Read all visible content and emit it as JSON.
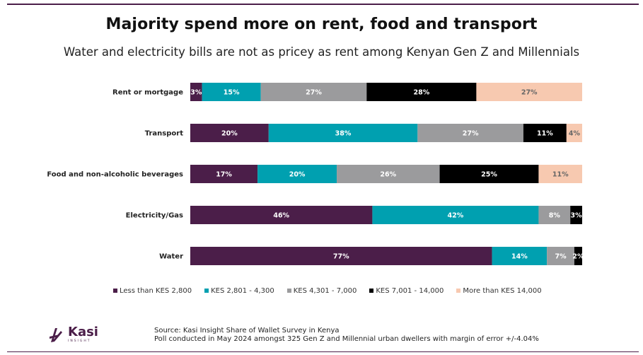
{
  "header": {
    "title": "Majority spend more on rent, food and transport",
    "subtitle": "Water and electricity bills are not as pricey as rent among Kenyan Gen Z and Millennials"
  },
  "colors": [
    "#4b1e49",
    "#00a0b0",
    "#9b9b9d",
    "#000000",
    "#f7c9b0"
  ],
  "label_colors": [
    "#ffffff",
    "#ffffff",
    "#ffffff",
    "#ffffff",
    "#666666"
  ],
  "chart_data": {
    "type": "bar",
    "orientation": "horizontal",
    "stacked": true,
    "categories": [
      "Rent or mortgage",
      "Transport",
      "Food and non-alcoholic beverages",
      "Electricity/Gas",
      "Water"
    ],
    "series": [
      {
        "name": "Less than KES 2,800",
        "values": [
          3,
          20,
          17,
          46,
          77
        ],
        "labels": [
          "3%",
          "20%",
          "17%",
          "46%",
          "77%"
        ]
      },
      {
        "name": "KES 2,801 - 4,300",
        "values": [
          15,
          38,
          20,
          42,
          14
        ],
        "labels": [
          "15%",
          "38%",
          "20%",
          "42%",
          "14%"
        ]
      },
      {
        "name": "KES 4,301 - 7,000",
        "values": [
          27,
          27,
          26,
          8,
          7
        ],
        "labels": [
          "27%",
          "27%",
          "26%",
          "8%",
          "7%"
        ]
      },
      {
        "name": "KES 7,001 - 14,000",
        "values": [
          28,
          11,
          25,
          3,
          2
        ],
        "labels": [
          "28%",
          "11%",
          "25%",
          "3%",
          "2%"
        ]
      },
      {
        "name": "More than KES 14,000",
        "values": [
          27,
          4,
          11,
          0,
          0
        ],
        "labels": [
          "27%",
          "4%",
          "11%",
          "",
          ""
        ]
      }
    ],
    "xlim": [
      0,
      100
    ],
    "legend_position": "bottom"
  },
  "legend": {
    "items": [
      "Less than KES 2,800",
      "KES 2,801 - 4,300",
      "KES 4,301 - 7,000",
      "KES 7,001 - 14,000",
      "More than KES 14,000"
    ]
  },
  "footer": {
    "logo_name": "Kasi",
    "logo_sub": "INSIGHT",
    "source_line1": "Source: Kasi Insight Share of Wallet Survey in Kenya",
    "source_line2": "Poll conducted in May 2024 amongst 325  Gen Z and Millennial urban dwellers with margin of error +/-4.04%"
  }
}
